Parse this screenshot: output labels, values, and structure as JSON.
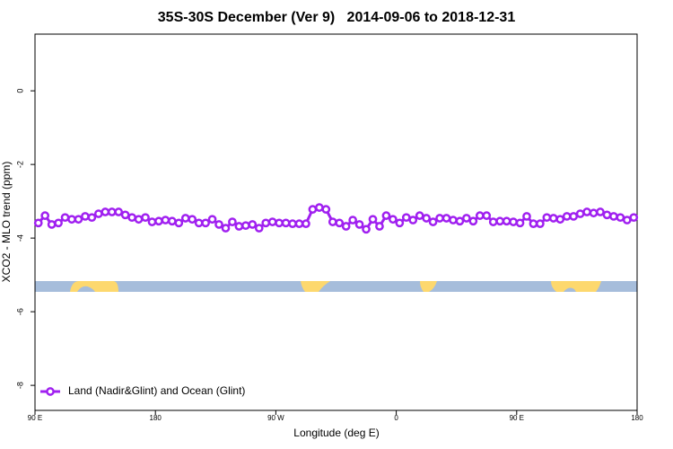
{
  "chart_data": {
    "type": "line",
    "title": "35S-30S December (Ver 9)   2014-09-06 to 2018-12-31",
    "xlabel": "Longitude (deg E)",
    "ylabel": "XCO2 - MLO trend (ppm)",
    "xlim": [
      90,
      540
    ],
    "xticks": [
      {
        "value": 90,
        "label": "90 E"
      },
      180,
      {
        "value": 270,
        "label": "90 W"
      },
      {
        "value": 360,
        "label": "0"
      },
      {
        "value": 450,
        "label": "90 E"
      },
      {
        "value": 540,
        "label": "180"
      }
    ],
    "ylim": [
      -8.68,
      1.54
    ],
    "yticks": [
      -8,
      -6,
      -4,
      -2,
      0
    ],
    "grid": false,
    "legend": "bottom-left",
    "x": [
      92.5,
      97.5,
      102.5,
      107.5,
      112.5,
      117.5,
      122.5,
      127.5,
      132.5,
      137.5,
      142.5,
      147.5,
      152.5,
      157.5,
      162.5,
      167.5,
      172.5,
      177.5,
      182.5,
      187.5,
      192.5,
      197.5,
      202.5,
      207.5,
      212.5,
      217.5,
      222.5,
      227.5,
      232.5,
      237.5,
      242.5,
      247.5,
      252.5,
      257.5,
      262.5,
      267.5,
      272.5,
      277.5,
      282.5,
      287.5,
      292.5,
      297.5,
      302.5,
      307.5,
      312.5,
      317.5,
      322.5,
      327.5,
      332.5,
      337.5,
      342.5,
      347.5,
      352.5,
      357.5,
      362.5,
      367.5,
      372.5,
      377.5,
      382.5,
      387.5,
      392.5,
      397.5,
      402.5,
      407.5,
      412.5,
      417.5,
      422.5,
      427.5,
      432.5,
      437.5,
      442.5,
      447.5,
      452.5,
      457.5,
      462.5,
      467.5,
      472.5,
      477.5,
      482.5,
      487.5,
      492.5,
      497.5,
      502.5,
      507.5,
      512.5,
      517.5,
      522.5,
      527.5,
      532.5,
      537.5
    ],
    "series": [
      {
        "name": "Land (Nadir&Glint) and Ocean (Glint)",
        "color": "#a020f0",
        "values": [
          -3.59,
          -3.39,
          -3.63,
          -3.59,
          -3.44,
          -3.49,
          -3.49,
          -3.41,
          -3.44,
          -3.34,
          -3.29,
          -3.29,
          -3.29,
          -3.37,
          -3.44,
          -3.49,
          -3.44,
          -3.56,
          -3.54,
          -3.51,
          -3.54,
          -3.59,
          -3.46,
          -3.49,
          -3.59,
          -3.59,
          -3.49,
          -3.63,
          -3.73,
          -3.56,
          -3.68,
          -3.66,
          -3.63,
          -3.73,
          -3.59,
          -3.56,
          -3.59,
          -3.59,
          -3.61,
          -3.61,
          -3.61,
          -3.22,
          -3.17,
          -3.22,
          -3.56,
          -3.59,
          -3.68,
          -3.51,
          -3.63,
          -3.76,
          -3.49,
          -3.68,
          -3.39,
          -3.49,
          -3.59,
          -3.44,
          -3.51,
          -3.39,
          -3.46,
          -3.56,
          -3.46,
          -3.46,
          -3.51,
          -3.54,
          -3.46,
          -3.54,
          -3.39,
          -3.39,
          -3.56,
          -3.54,
          -3.54,
          -3.56,
          -3.59,
          -3.41,
          -3.61,
          -3.61,
          -3.44,
          -3.46,
          -3.49,
          -3.41,
          -3.41,
          -3.34,
          -3.29,
          -3.32,
          -3.29,
          -3.37,
          -3.41,
          -3.44,
          -3.51,
          -3.44
        ]
      }
    ]
  }
}
